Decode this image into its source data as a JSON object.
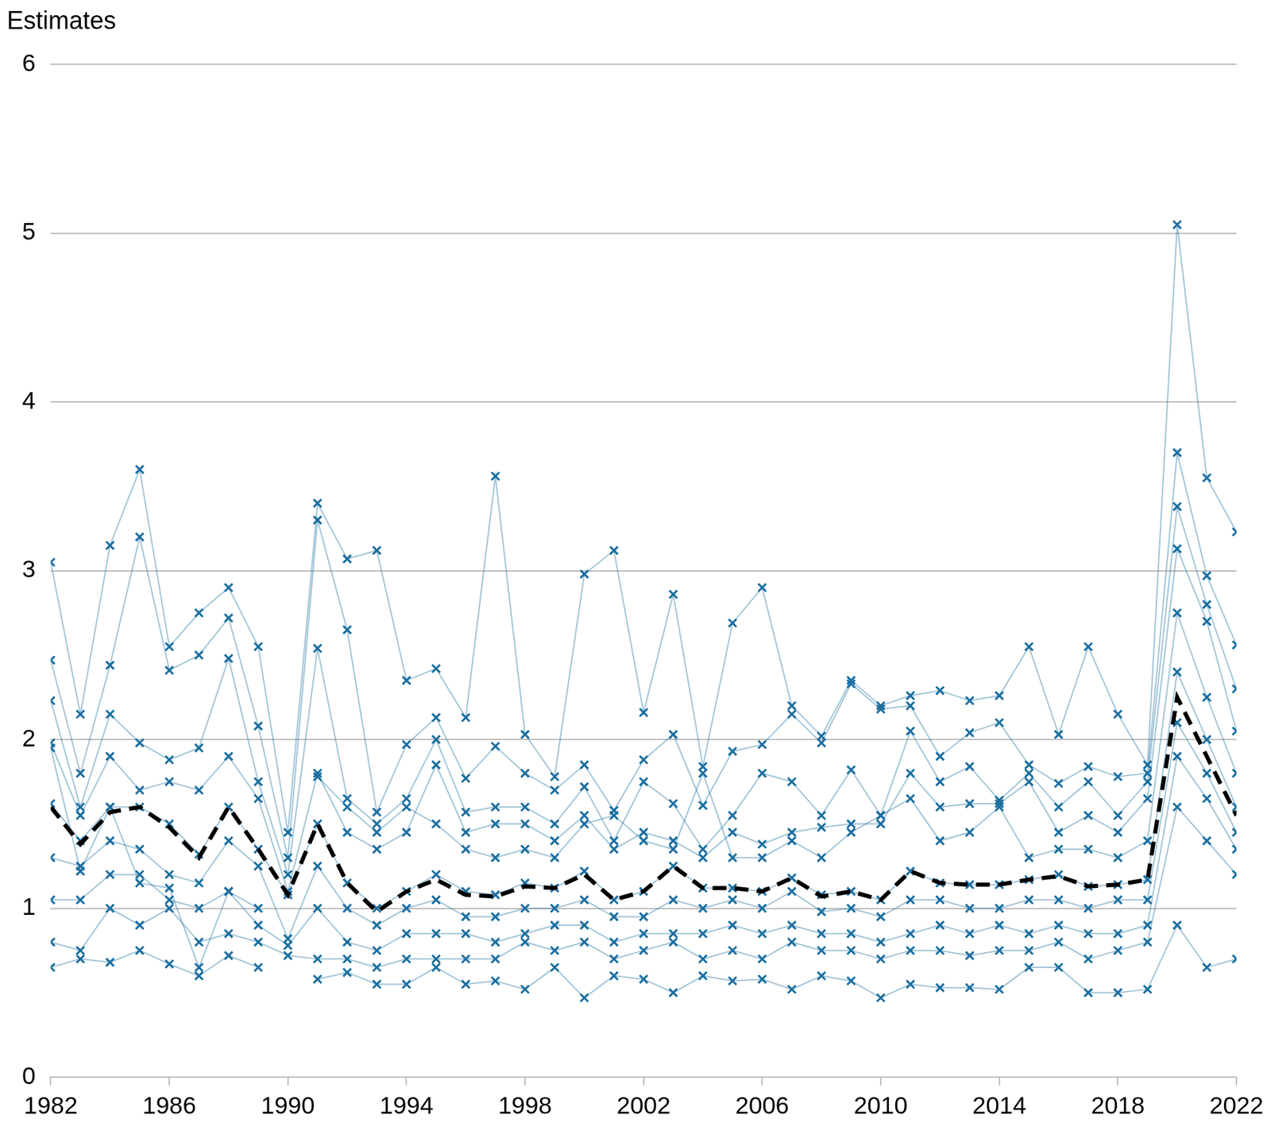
{
  "chart_data": {
    "type": "line",
    "ylabel": "Estimates",
    "x": [
      1982,
      1983,
      1984,
      1985,
      1986,
      1987,
      1988,
      1989,
      1990,
      1991,
      1992,
      1993,
      1994,
      1995,
      1996,
      1997,
      1998,
      1999,
      2000,
      2001,
      2002,
      2003,
      2004,
      2005,
      2006,
      2007,
      2008,
      2009,
      2010,
      2011,
      2012,
      2013,
      2014,
      2015,
      2016,
      2017,
      2018,
      2019,
      2020,
      2021,
      2022
    ],
    "xlim": [
      1982,
      2022
    ],
    "xticks": [
      1982,
      1986,
      1990,
      1994,
      1998,
      2002,
      2006,
      2010,
      2014,
      2018,
      2022
    ],
    "ylim": [
      0,
      6
    ],
    "yticks": [
      0,
      1,
      2,
      3,
      4,
      5,
      6
    ],
    "grid": true,
    "series": [
      {
        "color": "#1a6ea0",
        "marker": "x",
        "line_style": "solid",
        "values": [
          3.05,
          2.15,
          3.15,
          3.6,
          2.55,
          2.75,
          2.9,
          2.55,
          1.45,
          3.4,
          3.07,
          3.12,
          2.35,
          2.42,
          2.13,
          3.56,
          2.03,
          1.78,
          2.98,
          3.12,
          2.16,
          2.86,
          1.84,
          2.69,
          2.9,
          2.2,
          2.02,
          2.35,
          2.2,
          2.26,
          2.29,
          2.23,
          2.26,
          2.55,
          2.03,
          2.55,
          2.15,
          1.85,
          5.05,
          3.55,
          3.23
        ]
      },
      {
        "color": "#1a6ea0",
        "marker": "x",
        "line_style": "solid",
        "values": [
          2.47,
          1.8,
          2.44,
          3.2,
          2.41,
          2.5,
          2.72,
          2.08,
          1.3,
          3.3,
          2.65,
          1.57,
          1.97,
          2.13,
          1.77,
          1.96,
          1.8,
          1.7,
          1.85,
          1.58,
          1.88,
          2.03,
          1.61,
          1.93,
          1.97,
          2.15,
          1.98,
          2.33,
          2.18,
          2.2,
          1.9,
          2.04,
          2.1,
          1.85,
          1.74,
          1.84,
          1.78,
          1.8,
          3.7,
          2.97,
          2.56
        ]
      },
      {
        "color": "#1a6ea0",
        "marker": "x",
        "line_style": "solid",
        "values": [
          2.23,
          1.6,
          2.15,
          1.98,
          1.88,
          1.95,
          2.48,
          1.75,
          1.2,
          2.54,
          1.65,
          1.5,
          1.65,
          2.0,
          1.57,
          1.6,
          1.6,
          1.5,
          1.72,
          1.4,
          1.75,
          1.62,
          1.35,
          1.55,
          1.8,
          1.75,
          1.55,
          1.82,
          1.55,
          2.05,
          1.75,
          1.84,
          1.64,
          1.8,
          1.6,
          1.75,
          1.55,
          1.75,
          3.38,
          2.8,
          2.3
        ]
      },
      {
        "color": "#1a6ea0",
        "marker": "x",
        "line_style": "solid",
        "values": [
          1.98,
          1.55,
          1.9,
          1.7,
          1.75,
          1.7,
          1.9,
          1.65,
          1.1,
          1.8,
          1.45,
          1.35,
          1.45,
          1.85,
          1.45,
          1.5,
          1.5,
          1.4,
          1.55,
          1.35,
          1.45,
          1.4,
          1.3,
          1.45,
          1.38,
          1.45,
          1.48,
          1.5,
          1.5,
          1.8,
          1.6,
          1.62,
          1.62,
          1.75,
          1.45,
          1.55,
          1.45,
          1.65,
          3.13,
          2.7,
          2.05
        ]
      },
      {
        "color": "#1a6ea0",
        "marker": "x",
        "line_style": "solid",
        "values": [
          1.62,
          1.4,
          1.6,
          1.6,
          1.5,
          1.32,
          1.6,
          1.35,
          1.08,
          1.5,
          1.15,
          1.0,
          1.1,
          1.2,
          1.1,
          1.08,
          1.15,
          1.12,
          1.22,
          1.05,
          1.1,
          1.25,
          1.12,
          1.12,
          1.1,
          1.18,
          1.08,
          1.1,
          1.05,
          1.22,
          1.15,
          1.14,
          1.14,
          1.17,
          1.2,
          1.13,
          1.14,
          1.17,
          2.4,
          2.0,
          1.6
        ]
      },
      {
        "color": "#1a6ea0",
        "marker": "x",
        "line_style": "solid",
        "values": [
          1.3,
          1.25,
          1.4,
          1.35,
          1.2,
          1.15,
          1.4,
          1.25,
          0.82,
          1.25,
          1.0,
          0.9,
          1.0,
          1.05,
          0.95,
          0.95,
          1.0,
          1.0,
          1.05,
          0.95,
          0.95,
          1.05,
          1.0,
          1.05,
          1.0,
          1.1,
          0.98,
          1.0,
          0.95,
          1.05,
          1.05,
          1.0,
          1.0,
          1.05,
          1.05,
          1.0,
          1.05,
          1.05,
          2.1,
          1.8,
          1.45
        ]
      },
      {
        "color": "#1a6ea0",
        "marker": "x",
        "line_style": "solid",
        "values": [
          1.05,
          1.05,
          1.2,
          1.2,
          1.05,
          1.0,
          1.1,
          0.9,
          0.78,
          1.0,
          0.8,
          0.75,
          0.85,
          0.85,
          0.85,
          0.8,
          0.85,
          0.9,
          0.9,
          0.8,
          0.85,
          0.85,
          0.85,
          0.9,
          0.85,
          0.9,
          0.85,
          0.85,
          0.8,
          0.85,
          0.9,
          0.85,
          0.9,
          0.85,
          0.9,
          0.85,
          0.85,
          0.9,
          1.9,
          1.65,
          1.35
        ]
      },
      {
        "color": "#1a6ea0",
        "marker": "x",
        "line_style": "solid",
        "values": [
          0.8,
          0.75,
          1.0,
          0.9,
          1.0,
          0.8,
          0.85,
          0.8,
          0.72,
          0.7,
          0.7,
          0.65,
          0.7,
          0.7,
          0.7,
          0.7,
          0.8,
          0.75,
          0.8,
          0.7,
          0.75,
          0.8,
          0.7,
          0.75,
          0.7,
          0.8,
          0.75,
          0.75,
          0.7,
          0.75,
          0.75,
          0.72,
          0.75,
          0.75,
          0.8,
          0.7,
          0.75,
          0.8,
          1.6,
          1.4,
          1.2
        ]
      },
      {
        "color": "#1a6ea0",
        "marker": "x",
        "line_style": "solid",
        "values": [
          0.65,
          0.7,
          0.68,
          0.75,
          0.67,
          0.6,
          0.72,
          0.65,
          null,
          0.58,
          0.62,
          0.55,
          0.55,
          0.65,
          0.55,
          0.57,
          0.52,
          0.65,
          0.47,
          0.6,
          0.58,
          0.5,
          0.6,
          0.57,
          0.58,
          0.52,
          0.6,
          0.57,
          0.47,
          0.55,
          0.53,
          0.53,
          0.52,
          0.65,
          0.65,
          0.5,
          0.5,
          0.52,
          0.9,
          0.65,
          0.7
        ]
      },
      {
        "color": "#1a6ea0",
        "marker": "x",
        "line_style": "solid",
        "values": [
          1.95,
          1.22,
          1.6,
          1.15,
          1.12,
          0.65,
          1.1,
          1.0,
          null,
          1.78,
          1.6,
          1.45,
          1.6,
          1.5,
          1.35,
          1.3,
          1.35,
          1.3,
          1.5,
          1.55,
          1.4,
          1.35,
          1.8,
          1.3,
          1.3,
          1.4,
          1.3,
          1.45,
          1.55,
          1.65,
          1.4,
          1.45,
          1.6,
          1.3,
          1.35,
          1.35,
          1.3,
          1.4,
          2.75,
          2.25,
          1.8
        ]
      },
      {
        "color": "#000000",
        "marker": "none",
        "line_style": "dashed",
        "values": [
          1.6,
          1.38,
          1.57,
          1.6,
          1.48,
          1.3,
          1.6,
          1.35,
          1.08,
          1.5,
          1.15,
          0.98,
          1.1,
          1.17,
          1.08,
          1.07,
          1.13,
          1.12,
          1.2,
          1.05,
          1.1,
          1.25,
          1.12,
          1.12,
          1.1,
          1.18,
          1.07,
          1.1,
          1.05,
          1.22,
          1.15,
          1.14,
          1.14,
          1.17,
          1.19,
          1.13,
          1.14,
          1.17,
          2.25,
          1.9,
          1.55
        ]
      }
    ]
  }
}
